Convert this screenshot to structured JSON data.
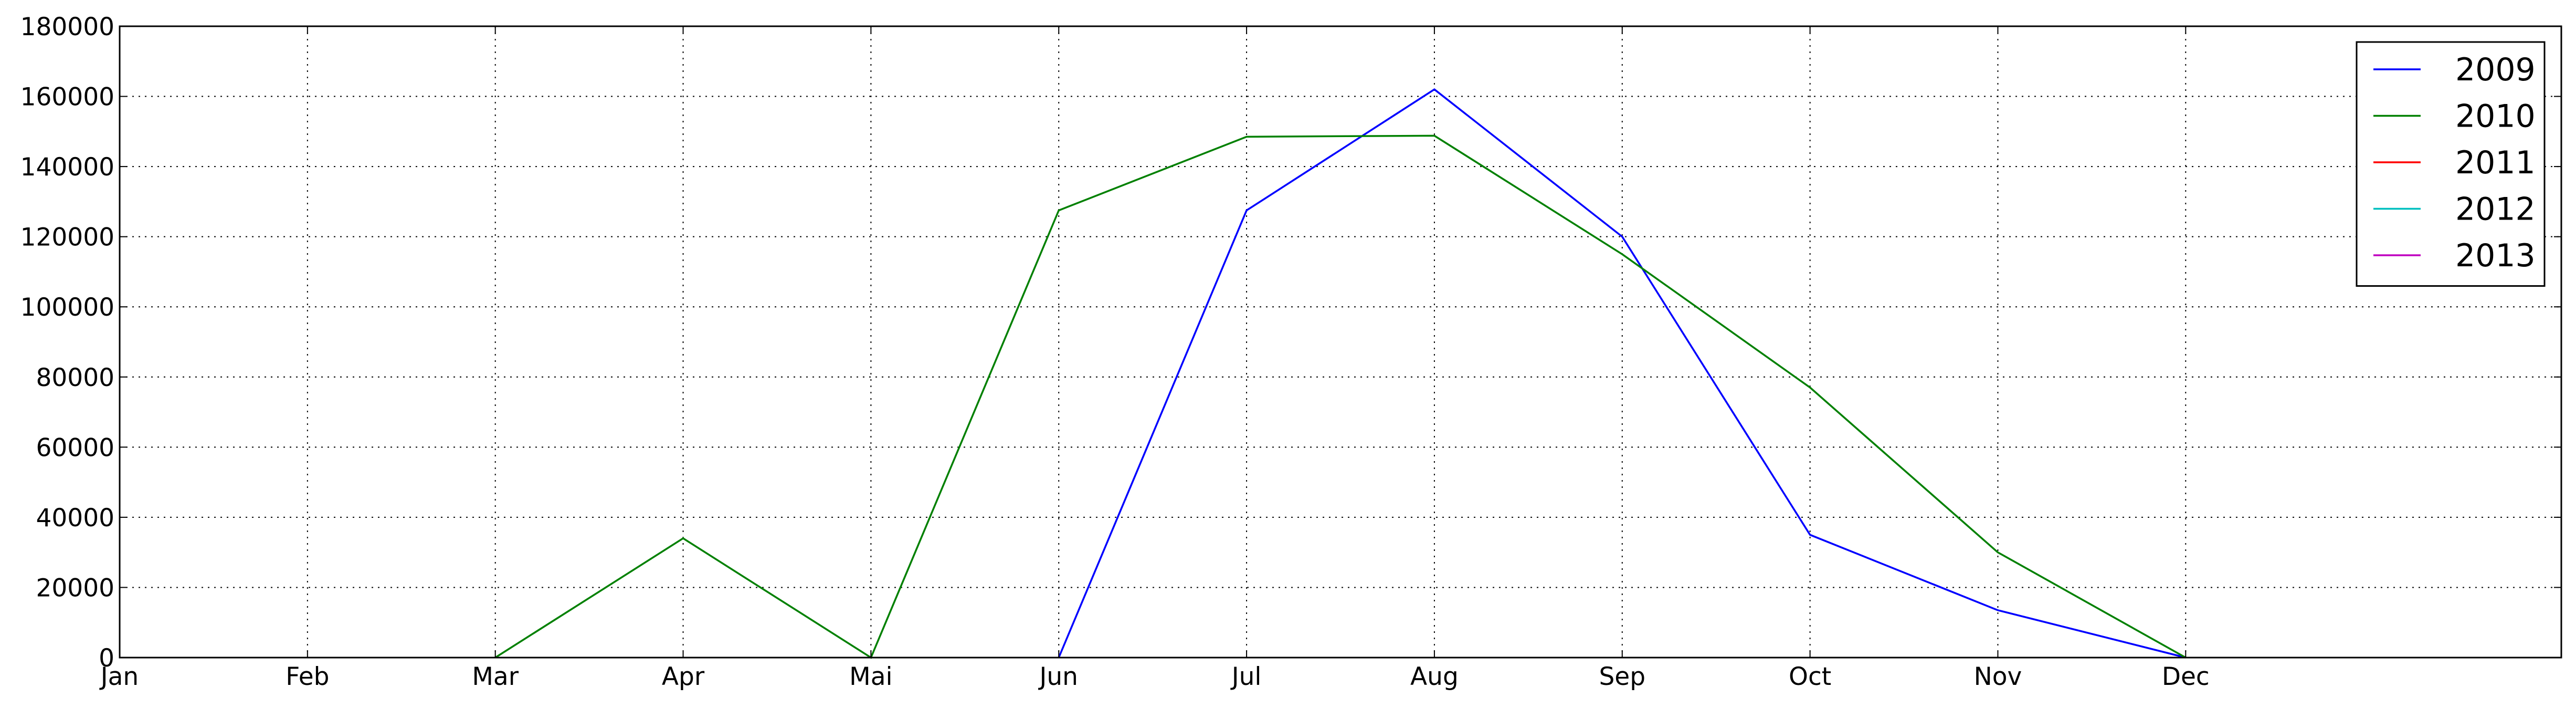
{
  "chart_data": {
    "type": "line",
    "categories": [
      "Jan",
      "Feb",
      "Mar",
      "Apr",
      "Mai",
      "Jun",
      "Jul",
      "Aug",
      "Sep",
      "Oct",
      "Nov",
      "Dec"
    ],
    "ylim": [
      0,
      180000
    ],
    "yticks": [
      "0",
      "20000",
      "40000",
      "60000",
      "80000",
      "100000",
      "120000",
      "140000",
      "160000",
      "180000"
    ],
    "grid": true,
    "legend_position": "top-right",
    "series": [
      {
        "name": "2009",
        "color": "#0000ff",
        "values": [
          null,
          null,
          null,
          null,
          null,
          0,
          127500,
          162000,
          120000,
          35000,
          13500,
          0
        ]
      },
      {
        "name": "2010",
        "color": "#008000",
        "values": [
          null,
          null,
          0,
          34000,
          0,
          127500,
          148500,
          148800,
          115000,
          77000,
          30000,
          0
        ]
      },
      {
        "name": "2011",
        "color": "#ff0000",
        "values": [
          null,
          null,
          null,
          null,
          null,
          null,
          null,
          null,
          null,
          null,
          null,
          null
        ]
      },
      {
        "name": "2012",
        "color": "#00bfbf",
        "values": [
          null,
          null,
          null,
          null,
          null,
          null,
          null,
          null,
          null,
          null,
          null,
          null
        ]
      },
      {
        "name": "2013",
        "color": "#bf00bf",
        "values": [
          null,
          null,
          null,
          null,
          null,
          null,
          null,
          null,
          null,
          null,
          null,
          null
        ]
      }
    ]
  }
}
